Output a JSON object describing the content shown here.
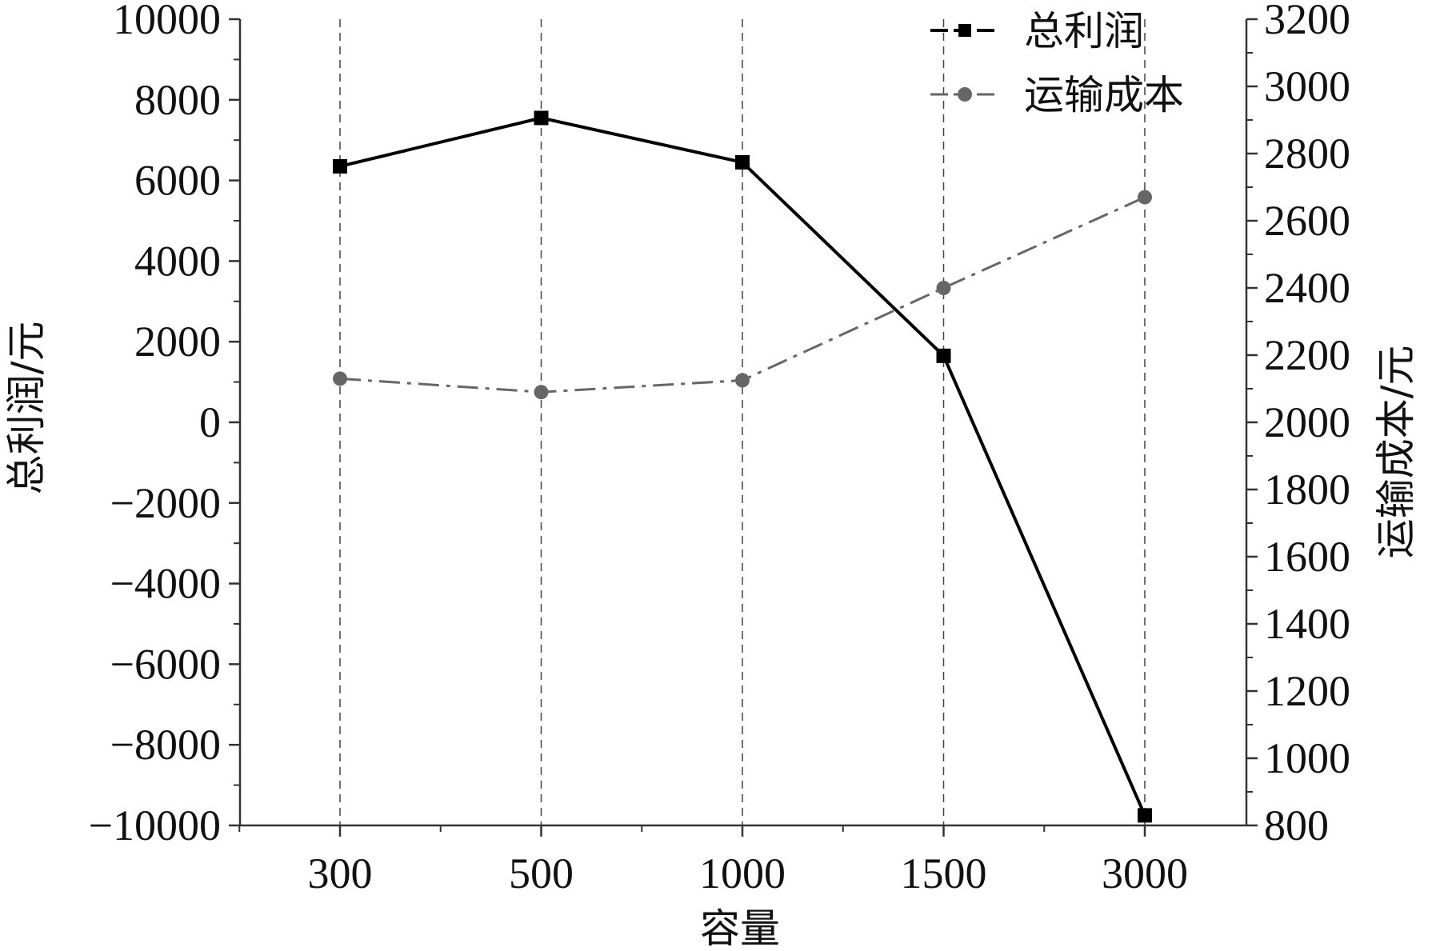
{
  "chart_data": {
    "type": "line",
    "categories": [
      "300",
      "500",
      "1000",
      "1500",
      "3000"
    ],
    "xlabel": "容量",
    "ylabel_left": "总利润/元",
    "ylabel_right": "运输成本/元",
    "y_left_range": [
      -10000,
      10000
    ],
    "y_left_ticks": [
      -10000,
      -8000,
      -6000,
      -4000,
      -2000,
      0,
      2000,
      4000,
      6000,
      8000,
      10000
    ],
    "y_right_range": [
      800,
      3200
    ],
    "y_right_ticks": [
      800,
      1000,
      1200,
      1400,
      1600,
      1800,
      2000,
      2200,
      2400,
      2600,
      2800,
      3000,
      3200
    ],
    "grid": "vertical dashed lines at each category",
    "legend_position": "top-right",
    "series": [
      {
        "name": "总利润",
        "axis": "left",
        "marker": "square",
        "line_style": "solid",
        "color": "#000000",
        "values": [
          6350,
          7550,
          6450,
          1650,
          -9750
        ]
      },
      {
        "name": "运输成本",
        "axis": "right",
        "marker": "circle",
        "line_style": "dash-dot",
        "color": "#666666",
        "values": [
          2130,
          2090,
          2125,
          2400,
          2670
        ]
      }
    ]
  }
}
